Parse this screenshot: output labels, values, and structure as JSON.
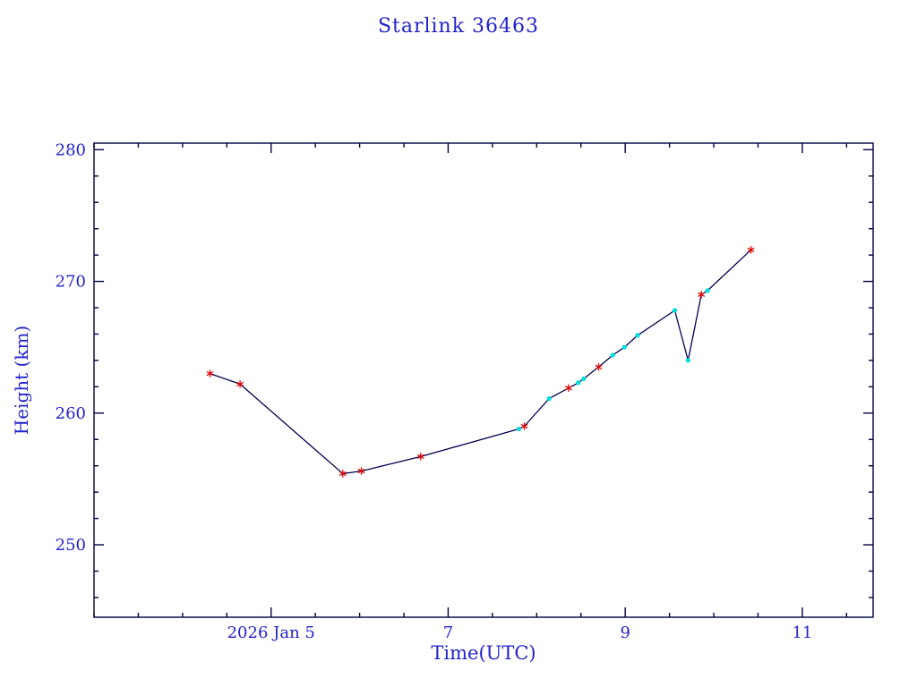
{
  "title": "Starlink 36463",
  "axes": {
    "x_label": "Time(UTC)",
    "y_label": "Height (km)"
  },
  "chart_data": {
    "type": "line",
    "title": "Starlink 36463",
    "xlabel": "Time(UTC)",
    "ylabel": "Height (km)",
    "x_unit": "day of January 2026, UTC",
    "xlim": [
      3.0,
      11.8
    ],
    "ylim": [
      244.5,
      280.5
    ],
    "grid": false,
    "legend_position": "none",
    "x_major_ticks": [
      {
        "value": 5,
        "label": "2026 Jan 5"
      },
      {
        "value": 7,
        "label": "7"
      },
      {
        "value": 9,
        "label": "9"
      },
      {
        "value": 11,
        "label": "11"
      }
    ],
    "x_minor_step": 0.5,
    "y_major_ticks": [
      {
        "value": 250,
        "label": "250"
      },
      {
        "value": 260,
        "label": "260"
      },
      {
        "value": 270,
        "label": "270"
      },
      {
        "value": 280,
        "label": "280"
      }
    ],
    "y_minor_step": 2,
    "series": [
      {
        "name": "orbital-height",
        "points": [
          {
            "t": 4.31,
            "h": 263.0,
            "marker": "red-star"
          },
          {
            "t": 4.65,
            "h": 262.2,
            "marker": "red-star"
          },
          {
            "t": 5.81,
            "h": 255.4,
            "marker": "red-star"
          },
          {
            "t": 6.02,
            "h": 255.6,
            "marker": "red-star"
          },
          {
            "t": 6.69,
            "h": 256.7,
            "marker": "red-star"
          },
          {
            "t": 7.8,
            "h": 258.8,
            "marker": "cyan-dot"
          },
          {
            "t": 7.86,
            "h": 259.0,
            "marker": "red-star"
          },
          {
            "t": 8.14,
            "h": 261.1,
            "marker": "cyan-dot"
          },
          {
            "t": 8.36,
            "h": 261.9,
            "marker": "red-star"
          },
          {
            "t": 8.47,
            "h": 262.3,
            "marker": "cyan-dot"
          },
          {
            "t": 8.53,
            "h": 262.6,
            "marker": "cyan-dot"
          },
          {
            "t": 8.7,
            "h": 263.5,
            "marker": "red-star"
          },
          {
            "t": 8.86,
            "h": 264.4,
            "marker": "cyan-dot"
          },
          {
            "t": 8.99,
            "h": 265.0,
            "marker": "cyan-dot"
          },
          {
            "t": 9.14,
            "h": 265.9,
            "marker": "cyan-dot"
          },
          {
            "t": 9.56,
            "h": 267.8,
            "marker": "cyan-dot"
          },
          {
            "t": 9.71,
            "h": 264.0,
            "marker": "cyan-dot"
          },
          {
            "t": 9.86,
            "h": 269.0,
            "marker": "red-star"
          },
          {
            "t": 9.93,
            "h": 269.3,
            "marker": "cyan-dot"
          },
          {
            "t": 10.42,
            "h": 272.4,
            "marker": "red-star"
          }
        ]
      }
    ],
    "colors": {
      "text": "#2222cc",
      "axis": "#000040",
      "line": "#000050",
      "red_marker": "#dd0000",
      "cyan_marker": "#00dddd",
      "background": "#ffffff"
    }
  }
}
